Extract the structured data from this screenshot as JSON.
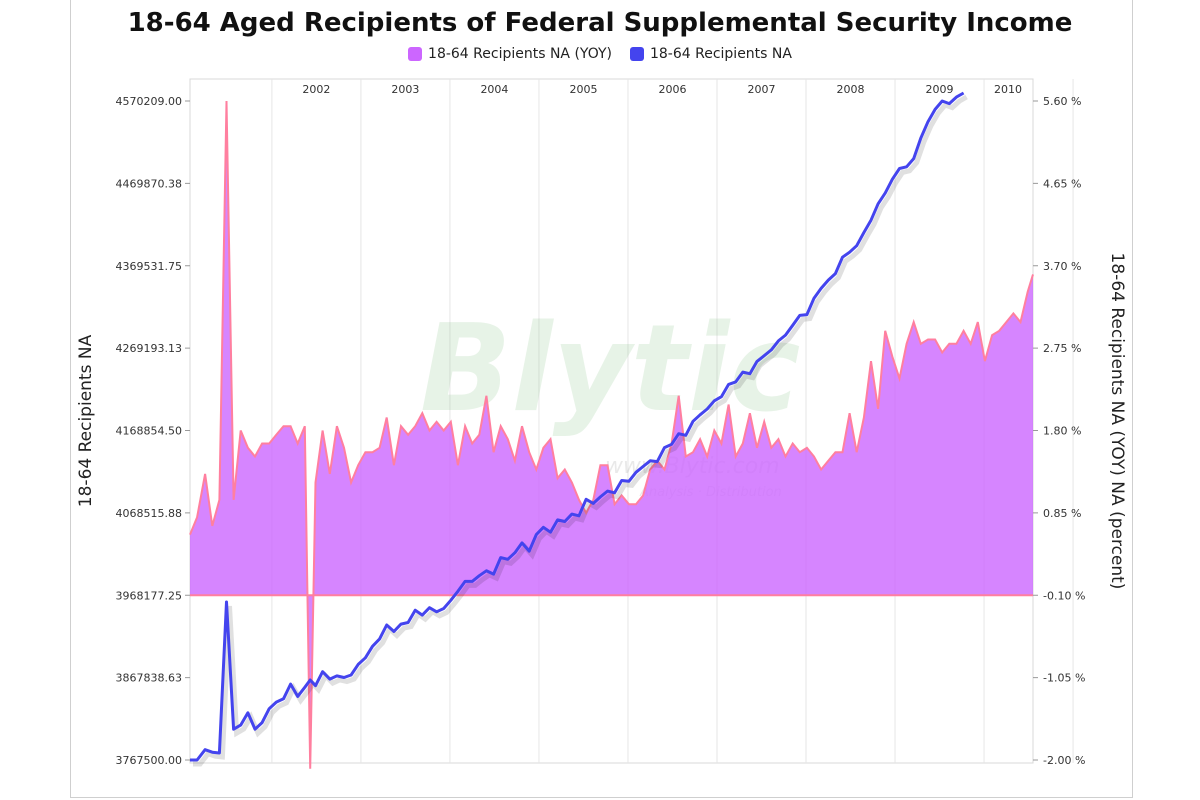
{
  "chart_data": {
    "type": "area+line",
    "title": "18-64 Aged Recipients of Federal Supplemental Security Income",
    "legend": [
      {
        "label": "18-64 Recipients NA (YOY)",
        "color": "#cc66ff"
      },
      {
        "label": "18-64 Recipients NA",
        "color": "#4444ee"
      }
    ],
    "left_axis": {
      "label": "18-64 Recipients NA",
      "ticks": [
        "4570209.00",
        "4469870.38",
        "4369531.75",
        "4269193.13",
        "4168854.50",
        "4068515.88",
        "3968177.25",
        "3867838.63",
        "3767500.00"
      ],
      "range": [
        3767500,
        4570209
      ]
    },
    "right_axis": {
      "label": "18-64 Recipients NA (YOY) NA (percent)",
      "ticks": [
        "5.60 %",
        "4.65 %",
        "3.70 %",
        "2.75 %",
        "1.80 %",
        "0.85 %",
        "-0.10 %",
        "-1.05 %",
        "-2.00 %"
      ],
      "range": [
        -2.0,
        5.6
      ]
    },
    "x_axis": {
      "year_labels": [
        "2002",
        "2003",
        "2004",
        "2005",
        "2006",
        "2007",
        "2008",
        "2009",
        "2010"
      ],
      "year_positions": [
        2002.0,
        2003.0,
        2004.0,
        2005.0,
        2006.0,
        2007.0,
        2008.0,
        2009.0,
        2010.0
      ],
      "range": [
        2000.58,
        2010.05
      ]
    },
    "series": [
      {
        "name": "18-64 Recipients NA (YOY)",
        "axis": "right",
        "style": "area",
        "points": [
          [
            2000.58,
            0.6
          ],
          [
            2000.66,
            0.8
          ],
          [
            2000.75,
            1.3
          ],
          [
            2000.83,
            0.7
          ],
          [
            2000.91,
            1.0
          ],
          [
            2000.99,
            5.6
          ],
          [
            2001.07,
            1.0
          ],
          [
            2001.15,
            1.8
          ],
          [
            2001.23,
            1.6
          ],
          [
            2001.31,
            1.5
          ],
          [
            2001.39,
            1.65
          ],
          [
            2001.47,
            1.65
          ],
          [
            2001.55,
            1.75
          ],
          [
            2001.63,
            1.85
          ],
          [
            2001.71,
            1.85
          ],
          [
            2001.79,
            1.65
          ],
          [
            2001.87,
            1.85
          ],
          [
            2001.93,
            -2.1
          ],
          [
            2001.99,
            1.2
          ],
          [
            2002.07,
            1.8
          ],
          [
            2002.15,
            1.3
          ],
          [
            2002.23,
            1.85
          ],
          [
            2002.31,
            1.6
          ],
          [
            2002.39,
            1.2
          ],
          [
            2002.47,
            1.4
          ],
          [
            2002.55,
            1.55
          ],
          [
            2002.63,
            1.55
          ],
          [
            2002.71,
            1.6
          ],
          [
            2002.79,
            1.95
          ],
          [
            2002.87,
            1.4
          ],
          [
            2002.95,
            1.85
          ],
          [
            2003.03,
            1.75
          ],
          [
            2003.11,
            1.85
          ],
          [
            2003.19,
            2.0
          ],
          [
            2003.27,
            1.8
          ],
          [
            2003.35,
            1.9
          ],
          [
            2003.43,
            1.8
          ],
          [
            2003.51,
            1.9
          ],
          [
            2003.59,
            1.4
          ],
          [
            2003.67,
            1.85
          ],
          [
            2003.75,
            1.65
          ],
          [
            2003.83,
            1.75
          ],
          [
            2003.91,
            2.2
          ],
          [
            2003.99,
            1.55
          ],
          [
            2004.07,
            1.85
          ],
          [
            2004.15,
            1.7
          ],
          [
            2004.23,
            1.45
          ],
          [
            2004.31,
            1.85
          ],
          [
            2004.39,
            1.55
          ],
          [
            2004.47,
            1.35
          ],
          [
            2004.55,
            1.6
          ],
          [
            2004.63,
            1.7
          ],
          [
            2004.71,
            1.25
          ],
          [
            2004.79,
            1.35
          ],
          [
            2004.87,
            1.2
          ],
          [
            2004.95,
            1.0
          ],
          [
            2005.03,
            0.85
          ],
          [
            2005.11,
            1.0
          ],
          [
            2005.19,
            1.4
          ],
          [
            2005.27,
            1.4
          ],
          [
            2005.35,
            0.95
          ],
          [
            2005.43,
            1.05
          ],
          [
            2005.51,
            0.95
          ],
          [
            2005.59,
            0.95
          ],
          [
            2005.67,
            1.05
          ],
          [
            2005.75,
            1.35
          ],
          [
            2005.83,
            1.45
          ],
          [
            2005.91,
            1.35
          ],
          [
            2005.99,
            1.65
          ],
          [
            2006.07,
            2.2
          ],
          [
            2006.15,
            1.5
          ],
          [
            2006.23,
            1.55
          ],
          [
            2006.31,
            1.7
          ],
          [
            2006.39,
            1.5
          ],
          [
            2006.47,
            1.8
          ],
          [
            2006.55,
            1.65
          ],
          [
            2006.63,
            2.1
          ],
          [
            2006.71,
            1.5
          ],
          [
            2006.79,
            1.65
          ],
          [
            2006.87,
            2.0
          ],
          [
            2006.95,
            1.6
          ],
          [
            2007.03,
            1.9
          ],
          [
            2007.11,
            1.6
          ],
          [
            2007.19,
            1.7
          ],
          [
            2007.27,
            1.5
          ],
          [
            2007.35,
            1.65
          ],
          [
            2007.43,
            1.55
          ],
          [
            2007.51,
            1.6
          ],
          [
            2007.59,
            1.5
          ],
          [
            2007.67,
            1.35
          ],
          [
            2007.75,
            1.45
          ],
          [
            2007.83,
            1.55
          ],
          [
            2007.91,
            1.55
          ],
          [
            2007.99,
            2.0
          ],
          [
            2008.07,
            1.55
          ],
          [
            2008.15,
            1.95
          ],
          [
            2008.23,
            2.6
          ],
          [
            2008.31,
            2.05
          ],
          [
            2008.39,
            2.95
          ],
          [
            2008.47,
            2.65
          ],
          [
            2008.55,
            2.4
          ],
          [
            2008.63,
            2.8
          ],
          [
            2008.71,
            3.05
          ],
          [
            2008.79,
            2.8
          ],
          [
            2008.87,
            2.85
          ],
          [
            2008.95,
            2.85
          ],
          [
            2009.03,
            2.7
          ],
          [
            2009.11,
            2.8
          ],
          [
            2009.19,
            2.8
          ],
          [
            2009.27,
            2.95
          ],
          [
            2009.35,
            2.8
          ],
          [
            2009.43,
            3.05
          ],
          [
            2009.51,
            2.6
          ],
          [
            2009.59,
            2.9
          ],
          [
            2009.67,
            2.95
          ],
          [
            2009.75,
            3.05
          ],
          [
            2009.83,
            3.15
          ],
          [
            2009.91,
            3.05
          ],
          [
            2009.99,
            3.4
          ],
          [
            2010.05,
            3.6
          ]
        ]
      },
      {
        "name": "18-64 Recipients NA",
        "axis": "left",
        "style": "line",
        "points": [
          [
            2000.58,
            3767500
          ],
          [
            2000.66,
            3767500
          ],
          [
            2000.75,
            3780000
          ],
          [
            2000.83,
            3777000
          ],
          [
            2000.91,
            3776000
          ],
          [
            2000.99,
            3960000
          ],
          [
            2001.07,
            3805000
          ],
          [
            2001.15,
            3810000
          ],
          [
            2001.23,
            3825000
          ],
          [
            2001.31,
            3805000
          ],
          [
            2001.39,
            3813000
          ],
          [
            2001.47,
            3830000
          ],
          [
            2001.55,
            3838000
          ],
          [
            2001.63,
            3842000
          ],
          [
            2001.71,
            3860000
          ],
          [
            2001.79,
            3845000
          ],
          [
            2001.87,
            3856000
          ],
          [
            2001.93,
            3865000
          ],
          [
            2001.99,
            3858000
          ],
          [
            2002.07,
            3875000
          ],
          [
            2002.15,
            3866000
          ],
          [
            2002.23,
            3870000
          ],
          [
            2002.31,
            3868000
          ],
          [
            2002.39,
            3871000
          ],
          [
            2002.47,
            3884000
          ],
          [
            2002.55,
            3892000
          ],
          [
            2002.63,
            3906000
          ],
          [
            2002.71,
            3915000
          ],
          [
            2002.79,
            3932000
          ],
          [
            2002.87,
            3924000
          ],
          [
            2002.95,
            3933000
          ],
          [
            2003.03,
            3935000
          ],
          [
            2003.11,
            3950000
          ],
          [
            2003.19,
            3944000
          ],
          [
            2003.27,
            3953000
          ],
          [
            2003.35,
            3948000
          ],
          [
            2003.43,
            3952000
          ],
          [
            2003.51,
            3962000
          ],
          [
            2003.59,
            3973000
          ],
          [
            2003.67,
            3985000
          ],
          [
            2003.75,
            3985000
          ],
          [
            2003.83,
            3992000
          ],
          [
            2003.91,
            3998000
          ],
          [
            2003.99,
            3994000
          ],
          [
            2004.07,
            4014000
          ],
          [
            2004.15,
            4012000
          ],
          [
            2004.23,
            4020000
          ],
          [
            2004.31,
            4032000
          ],
          [
            2004.39,
            4022000
          ],
          [
            2004.47,
            4042000
          ],
          [
            2004.55,
            4051000
          ],
          [
            2004.63,
            4045000
          ],
          [
            2004.71,
            4060000
          ],
          [
            2004.79,
            4058000
          ],
          [
            2004.87,
            4067000
          ],
          [
            2004.95,
            4065000
          ],
          [
            2005.03,
            4085000
          ],
          [
            2005.11,
            4080000
          ],
          [
            2005.19,
            4088000
          ],
          [
            2005.27,
            4095000
          ],
          [
            2005.35,
            4093000
          ],
          [
            2005.43,
            4108000
          ],
          [
            2005.51,
            4107000
          ],
          [
            2005.59,
            4118000
          ],
          [
            2005.67,
            4125000
          ],
          [
            2005.75,
            4132000
          ],
          [
            2005.83,
            4131000
          ],
          [
            2005.91,
            4148000
          ],
          [
            2005.99,
            4152000
          ],
          [
            2006.07,
            4165000
          ],
          [
            2006.15,
            4163000
          ],
          [
            2006.23,
            4180000
          ],
          [
            2006.31,
            4188000
          ],
          [
            2006.39,
            4195000
          ],
          [
            2006.47,
            4205000
          ],
          [
            2006.55,
            4210000
          ],
          [
            2006.63,
            4225000
          ],
          [
            2006.71,
            4228000
          ],
          [
            2006.79,
            4240000
          ],
          [
            2006.87,
            4238000
          ],
          [
            2006.95,
            4253000
          ],
          [
            2007.03,
            4260000
          ],
          [
            2007.11,
            4267000
          ],
          [
            2007.19,
            4278000
          ],
          [
            2007.27,
            4285000
          ],
          [
            2007.35,
            4297000
          ],
          [
            2007.43,
            4309000
          ],
          [
            2007.51,
            4310000
          ],
          [
            2007.59,
            4330000
          ],
          [
            2007.67,
            4342000
          ],
          [
            2007.75,
            4352000
          ],
          [
            2007.83,
            4360000
          ],
          [
            2007.91,
            4380000
          ],
          [
            2007.99,
            4386000
          ],
          [
            2008.07,
            4394000
          ],
          [
            2008.15,
            4410000
          ],
          [
            2008.23,
            4425000
          ],
          [
            2008.31,
            4445000
          ],
          [
            2008.39,
            4458000
          ],
          [
            2008.47,
            4475000
          ],
          [
            2008.55,
            4488000
          ],
          [
            2008.63,
            4490000
          ],
          [
            2008.71,
            4500000
          ],
          [
            2008.79,
            4525000
          ],
          [
            2008.87,
            4545000
          ],
          [
            2008.95,
            4560000
          ],
          [
            2009.03,
            4570209
          ],
          [
            2009.11,
            4567000
          ],
          [
            2009.19,
            4575000
          ],
          [
            2009.27,
            4580000
          ]
        ]
      }
    ],
    "watermark": {
      "text": "Blytic",
      "sub1": "www.Blytic.com",
      "sub2": "Analysis · Distribution"
    }
  }
}
